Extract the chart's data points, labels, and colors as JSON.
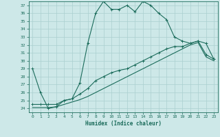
{
  "xlabel": "Humidex (Indice chaleur)",
  "bg_color": "#cde8e8",
  "line_color": "#1a6b5a",
  "grid_color": "#aacfcf",
  "xlim": [
    -0.5,
    23.5
  ],
  "ylim": [
    23.5,
    37.5
  ],
  "yticks": [
    24,
    25,
    26,
    27,
    28,
    29,
    30,
    31,
    32,
    33,
    34,
    35,
    36,
    37
  ],
  "xticks": [
    0,
    1,
    2,
    3,
    4,
    5,
    6,
    7,
    8,
    9,
    10,
    11,
    12,
    13,
    14,
    15,
    16,
    17,
    18,
    19,
    20,
    21,
    22,
    23
  ],
  "curve1_x": [
    0,
    1,
    2,
    3,
    4,
    5,
    6,
    7,
    8,
    9,
    10,
    11,
    12,
    13,
    14,
    15,
    16,
    17,
    18,
    19,
    20,
    21,
    22,
    23
  ],
  "curve1_y": [
    29.0,
    26.0,
    24.0,
    24.2,
    25.0,
    25.2,
    27.2,
    32.2,
    36.0,
    37.5,
    36.5,
    36.5,
    37.0,
    36.2,
    37.5,
    37.0,
    36.0,
    35.2,
    33.0,
    32.5,
    32.2,
    32.5,
    32.2,
    30.2
  ],
  "curve2_x": [
    0,
    1,
    2,
    3,
    4,
    5,
    6,
    7,
    8,
    9,
    10,
    11,
    12,
    13,
    14,
    15,
    16,
    17,
    18,
    19,
    20,
    21,
    22,
    23
  ],
  "curve2_y": [
    24.5,
    24.5,
    24.5,
    24.5,
    25.0,
    25.2,
    25.8,
    26.5,
    27.5,
    28.0,
    28.5,
    28.8,
    29.0,
    29.5,
    30.0,
    30.5,
    31.0,
    31.5,
    31.8,
    31.8,
    32.2,
    32.5,
    30.8,
    30.2
  ],
  "curve3_x": [
    0,
    1,
    2,
    3,
    4,
    5,
    6,
    7,
    8,
    9,
    10,
    11,
    12,
    13,
    14,
    15,
    16,
    17,
    18,
    19,
    20,
    21,
    22,
    23
  ],
  "curve3_y": [
    24.1,
    24.1,
    24.1,
    24.2,
    24.5,
    24.8,
    25.1,
    25.5,
    26.0,
    26.5,
    27.0,
    27.5,
    28.0,
    28.5,
    29.0,
    29.5,
    30.0,
    30.5,
    31.0,
    31.5,
    32.0,
    32.3,
    30.5,
    30.0
  ]
}
